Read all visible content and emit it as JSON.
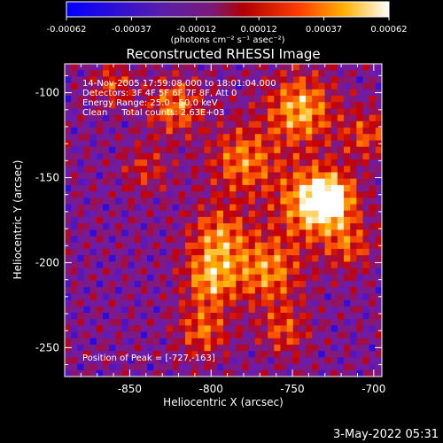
{
  "colorbar": {
    "ticks": [
      "-0.00062",
      "-0.00037",
      "-0.00012",
      "0.00012",
      "0.00037",
      "0.00062"
    ],
    "tick_values": [
      -0.00062,
      -0.00037,
      -0.00012,
      0.00012,
      0.00037,
      0.00062
    ],
    "unit_label": "(photons cm⁻² s⁻¹ asec⁻²)"
  },
  "footer": {
    "date": "3-May-2022 05:31"
  },
  "chart_data": {
    "type": "heatmap",
    "title": "Reconstructed RHESSI Image",
    "xlabel": "Heliocentric X (arcsec)",
    "ylabel": "Heliocentric Y (arcsec)",
    "xlim": [
      -890,
      -695
    ],
    "ylim": [
      -267,
      -83
    ],
    "x_ticks": [
      -850,
      -800,
      -750,
      -700
    ],
    "y_ticks": [
      -100,
      -150,
      -200,
      -250
    ],
    "x_tick_labels": [
      "-850",
      "-800",
      "-750",
      "-700"
    ],
    "y_tick_labels": [
      "-100",
      "-150",
      "-200",
      "-250"
    ],
    "annotations": [
      "14-Nov-2005 17:59:08.000 to 18:01:04.000",
      "Detectors: 3F 4F 5F 6F 7F 8F, Att 0",
      "Energy Range: 25.0 - 50.0 keV",
      "Clean     Total counts: 2.63E+03"
    ],
    "peak_label": "Position of Peak = [-727,-163]",
    "peak": [
      -727,
      -163
    ],
    "zlim": [
      -0.00062,
      0.00062
    ],
    "colormap": [
      "#0000ff",
      "#6a1bb0",
      "#801a80",
      "#c80000",
      "#ff5a00",
      "#ffb400",
      "#ffffff"
    ]
  }
}
